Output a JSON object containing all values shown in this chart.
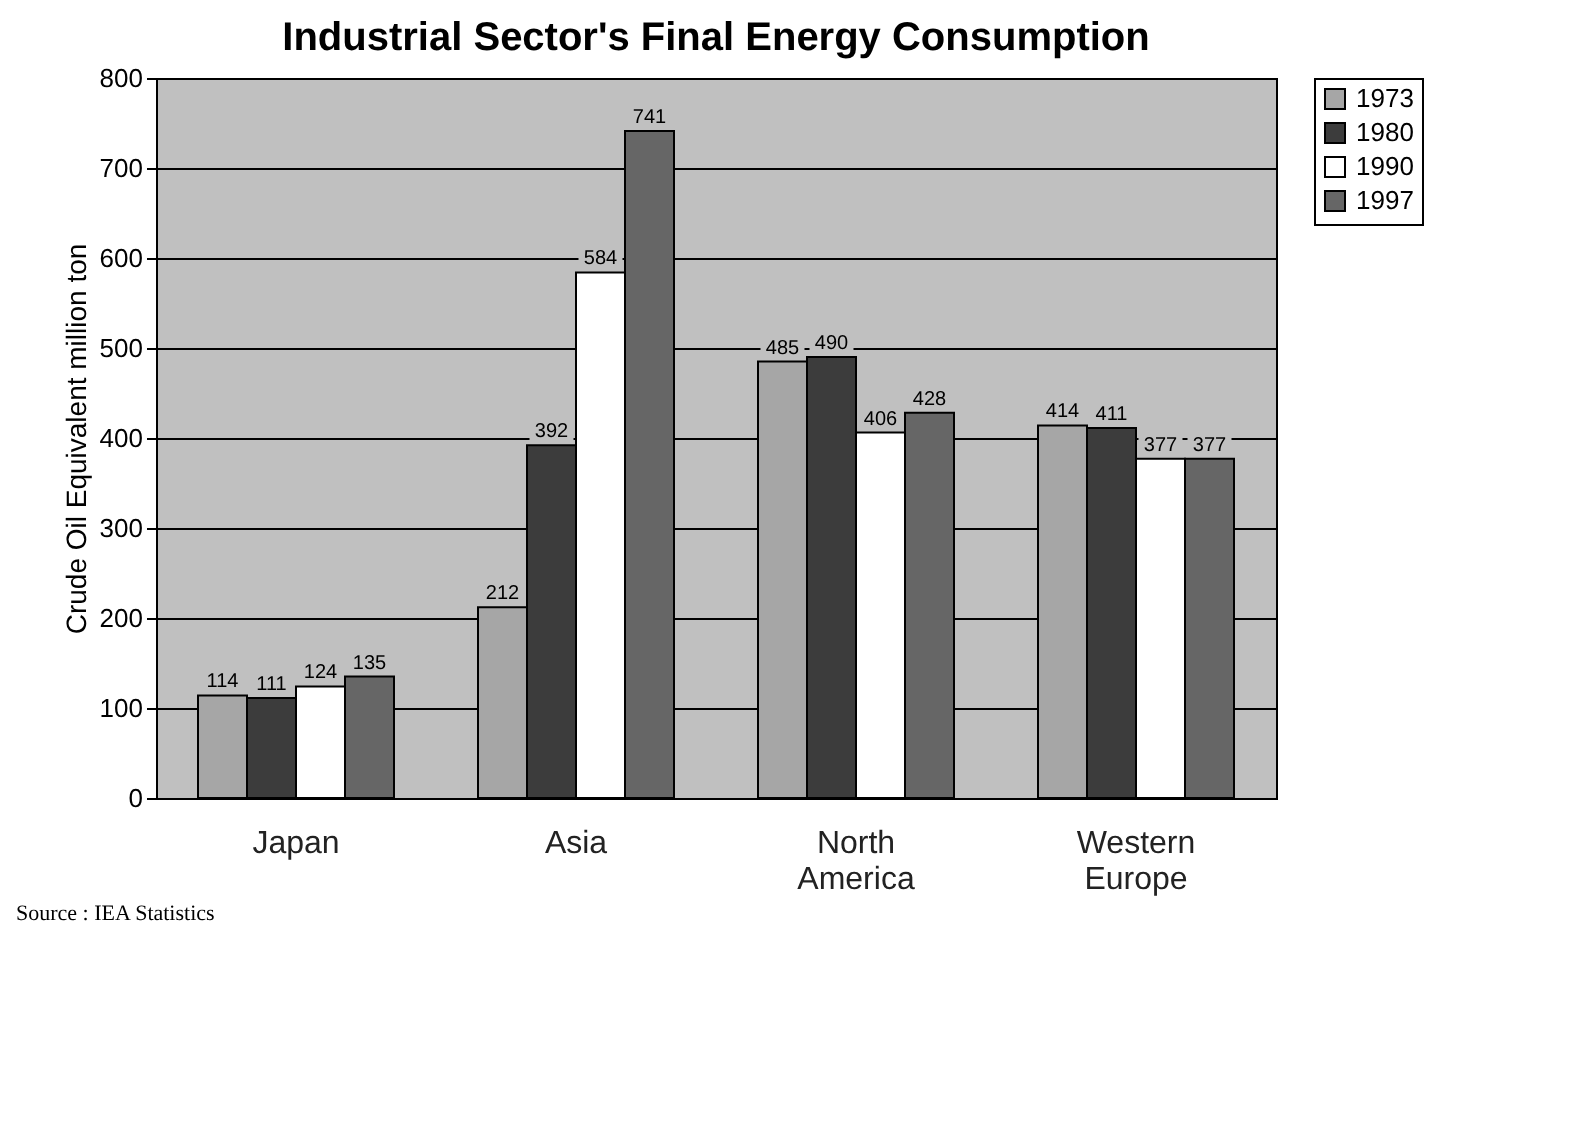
{
  "chart_data": {
    "type": "bar",
    "title": "Industrial Sector's Final Energy Consumption",
    "ylabel": "Crude Oil Equivalent million ton",
    "categories": [
      "Japan",
      "Asia",
      "North America",
      "Western Europe"
    ],
    "series": [
      {
        "name": "1973",
        "color": "#a6a6a6",
        "values": [
          114,
          212,
          485,
          414
        ]
      },
      {
        "name": "1980",
        "color": "#3c3c3c",
        "values": [
          111,
          392,
          490,
          411
        ]
      },
      {
        "name": "1990",
        "color": "#ffffff",
        "values": [
          124,
          584,
          406,
          377
        ]
      },
      {
        "name": "1997",
        "color": "#666666",
        "values": [
          135,
          741,
          428,
          377
        ]
      }
    ],
    "ylim": [
      0,
      800
    ],
    "yticks": [
      0,
      100,
      200,
      300,
      400,
      500,
      600,
      700,
      800
    ],
    "grid": "y",
    "legend": "right",
    "data_labels": true,
    "annotations": [
      "Source : IEA Statistics"
    ]
  }
}
